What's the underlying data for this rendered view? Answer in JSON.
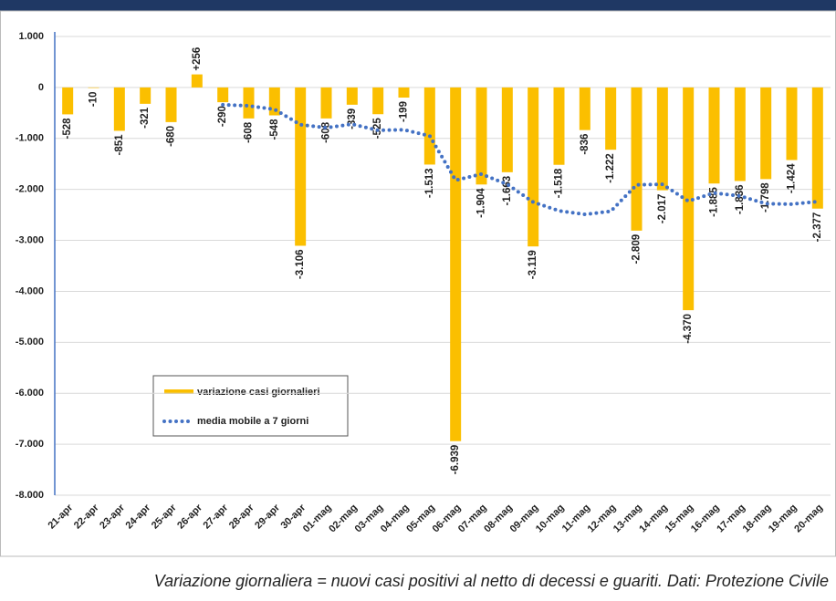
{
  "chart_data": {
    "type": "bar",
    "categories": [
      "21-apr",
      "22-apr",
      "23-apr",
      "24-apr",
      "25-apr",
      "26-apr",
      "27-apr",
      "28-apr",
      "29-apr",
      "30-apr",
      "01-mag",
      "02-mag",
      "03-mag",
      "04-mag",
      "05-mag",
      "06-mag",
      "07-mag",
      "08-mag",
      "09-mag",
      "10-mag",
      "11-mag",
      "12-mag",
      "13-mag",
      "14-mag",
      "15-mag",
      "16-mag",
      "17-mag",
      "18-mag",
      "19-mag",
      "20-mag"
    ],
    "series": [
      {
        "name": "variazione casi giornalieri",
        "color": "#fbbf00",
        "values": [
          -528,
          -10,
          -851,
          -321,
          -680,
          256,
          -290,
          -608,
          -548,
          -3106,
          -608,
          -339,
          -525,
          -199,
          -1513,
          -6939,
          -1904,
          -1663,
          -3119,
          -1518,
          -836,
          -1222,
          -2809,
          -2017,
          -4370,
          -1885,
          -1836,
          -1798,
          -1424,
          -2377
        ],
        "value_labels": [
          "-528",
          "-10",
          "-851",
          "-321",
          "-680",
          "+256",
          "-290",
          "-608",
          "-548",
          "-3.106",
          "-608",
          "-339",
          "-525",
          "-199",
          "-1.513",
          "-6.939",
          "-1.904",
          "-1.663",
          "-3.119",
          "-1.518",
          "-836",
          "-1.222",
          "-2.809",
          "-2.017",
          "-4.370",
          "-1.885",
          "-1.836",
          "-1.798",
          "-1.424",
          "-2.377"
        ]
      },
      {
        "name": "media mobile a 7 giorni",
        "color": "#4472c4",
        "type": "line",
        "values": [
          null,
          null,
          null,
          null,
          null,
          null,
          -340,
          -360,
          -430,
          -730,
          -790,
          -720,
          -840,
          -830,
          -950,
          -1820,
          -1700,
          -1900,
          -2250,
          -2420,
          -2490,
          -2430,
          -1910,
          -1900,
          -2230,
          -2070,
          -2130,
          -2280,
          -2290,
          -2240
        ]
      }
    ],
    "ylim": [
      -8000,
      1000
    ],
    "yticks": [
      {
        "value": 1000,
        "label": "1.000"
      },
      0,
      {
        "value": -1000,
        "label": "-1.000"
      },
      {
        "value": -2000,
        "label": "-2.000"
      },
      {
        "value": -3000,
        "label": "-3.000"
      },
      {
        "value": -4000,
        "label": "-4.000"
      },
      {
        "value": -5000,
        "label": "-5.000"
      },
      {
        "value": -6000,
        "label": "-6.000"
      },
      {
        "value": -7000,
        "label": "-7.000"
      },
      {
        "value": -8000,
        "label": "-8.000"
      }
    ],
    "grid": true,
    "label_color": "#e8141c",
    "note": "Variazione giornaliera = nuovi casi positivi al netto di decessi e guariti. Dati: Protezione Civile"
  }
}
